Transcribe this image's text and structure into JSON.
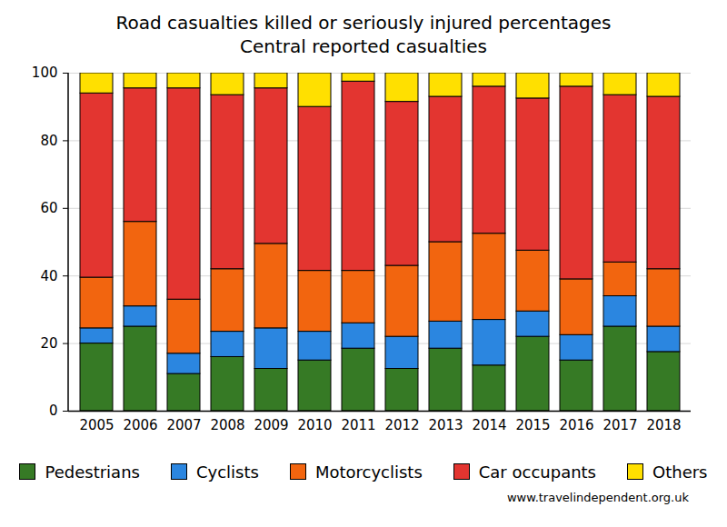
{
  "chart_data": {
    "type": "bar",
    "stacked": true,
    "title": "Road casualties killed or seriously injured percentages",
    "subtitle": "Central reported casualties",
    "source": "www.travelindependent.org.uk",
    "categories": [
      "2005",
      "2006",
      "2007",
      "2008",
      "2009",
      "2010",
      "2011",
      "2012",
      "2013",
      "2014",
      "2015",
      "2016",
      "2017",
      "2018"
    ],
    "series": [
      {
        "name": "Pedestrians",
        "color": "#367a25",
        "values": [
          20,
          25,
          11,
          16,
          12.5,
          15,
          18.5,
          12.5,
          18.5,
          13.5,
          22,
          15,
          25,
          17.5
        ]
      },
      {
        "name": "Cyclists",
        "color": "#2b86e0",
        "values": [
          4.5,
          6,
          6,
          7.5,
          12,
          8.5,
          7.5,
          9.5,
          8,
          13.5,
          7.5,
          7.5,
          9,
          7.5
        ]
      },
      {
        "name": "Motorcyclists",
        "color": "#f2650f",
        "values": [
          15,
          25,
          16,
          18.5,
          25,
          18,
          15.5,
          21,
          23.5,
          25.5,
          18,
          16.5,
          10,
          17
        ]
      },
      {
        "name": "Car occupants",
        "color": "#e33530",
        "values": [
          54.5,
          39.5,
          62.5,
          51.5,
          46,
          48.5,
          56,
          48.5,
          43,
          43.5,
          45,
          57,
          49.5,
          51
        ]
      },
      {
        "name": "Others",
        "color": "#ffe000",
        "values": [
          6,
          4.5,
          4.5,
          6.5,
          4.5,
          10,
          2.5,
          8.5,
          7,
          4,
          7.5,
          4,
          6.5,
          7
        ]
      }
    ],
    "ylim": [
      0,
      100
    ],
    "yticks": [
      0,
      20,
      40,
      60,
      80,
      100
    ],
    "grid": true,
    "legend": "bottom"
  }
}
